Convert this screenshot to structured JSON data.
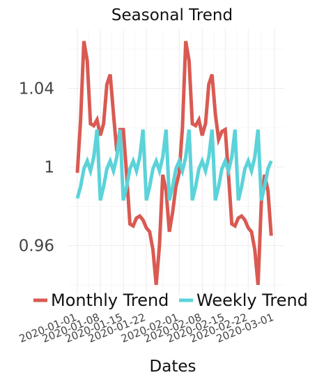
{
  "chart_data": {
    "type": "line",
    "title": "Seasonal Trend",
    "xlabel": "Dates",
    "ylabel": "",
    "x_start": "2020-01-01",
    "x_end": "2020-03-01",
    "xtick_labels": [
      "2020-01-01",
      "2020-01-08",
      "2020-01-15",
      "2020-01-22",
      "2020-02-01",
      "2020-02-08",
      "2020-02-15",
      "2020-02-22",
      "2020-03-01"
    ],
    "ytick_labels": [
      "0.96",
      "1",
      "1.04"
    ],
    "ytick_values": [
      0.96,
      1.0,
      1.04
    ],
    "ylim": [
      0.935,
      1.07
    ],
    "grid": true,
    "legend_position": "bottom",
    "x": [
      "2020-01-01",
      "2020-01-02",
      "2020-01-03",
      "2020-01-04",
      "2020-01-05",
      "2020-01-06",
      "2020-01-07",
      "2020-01-08",
      "2020-01-09",
      "2020-01-10",
      "2020-01-11",
      "2020-01-12",
      "2020-01-13",
      "2020-01-14",
      "2020-01-15",
      "2020-01-16",
      "2020-01-17",
      "2020-01-18",
      "2020-01-19",
      "2020-01-20",
      "2020-01-21",
      "2020-01-22",
      "2020-01-23",
      "2020-01-24",
      "2020-01-25",
      "2020-01-26",
      "2020-01-27",
      "2020-01-28",
      "2020-01-29",
      "2020-01-30",
      "2020-01-31",
      "2020-02-01",
      "2020-02-02",
      "2020-02-03",
      "2020-02-04",
      "2020-02-05",
      "2020-02-06",
      "2020-02-07",
      "2020-02-08",
      "2020-02-09",
      "2020-02-10",
      "2020-02-11",
      "2020-02-12",
      "2020-02-13",
      "2020-02-14",
      "2020-02-15",
      "2020-02-16",
      "2020-02-17",
      "2020-02-18",
      "2020-02-19",
      "2020-02-20",
      "2020-02-21",
      "2020-02-22",
      "2020-02-23",
      "2020-02-24",
      "2020-02-25",
      "2020-02-26",
      "2020-02-27",
      "2020-02-28",
      "2020-02-29"
    ],
    "series": [
      {
        "name": "Monthly Trend",
        "color": "#d95a52",
        "values": [
          0.997,
          1.024,
          1.064,
          1.054,
          1.022,
          1.021,
          1.024,
          1.016,
          1.022,
          1.042,
          1.047,
          1.027,
          1.008,
          1.019,
          1.019,
          0.996,
          0.971,
          0.97,
          0.974,
          0.975,
          0.973,
          0.969,
          0.967,
          0.958,
          0.94,
          0.96,
          0.996,
          0.988,
          0.967,
          0.977,
          0.99,
          0.997,
          1.02,
          1.064,
          1.054,
          1.022,
          1.021,
          1.024,
          1.016,
          1.022,
          1.042,
          1.047,
          1.027,
          1.014,
          1.018,
          1.019,
          0.996,
          0.971,
          0.97,
          0.974,
          0.975,
          0.973,
          0.969,
          0.967,
          0.958,
          0.94,
          0.982,
          0.996,
          0.988,
          0.965
        ]
      },
      {
        "name": "Weekly Trend",
        "color": "#5bd3d9",
        "values": [
          0.984,
          0.99,
          0.999,
          1.003,
          0.998,
          1.005,
          1.019,
          0.983,
          0.99,
          0.999,
          1.003,
          0.998,
          1.005,
          1.019,
          0.983,
          0.99,
          0.999,
          1.003,
          0.998,
          1.005,
          1.019,
          0.983,
          0.99,
          0.999,
          1.003,
          0.998,
          1.005,
          1.019,
          0.983,
          0.99,
          0.999,
          1.003,
          0.998,
          1.005,
          1.019,
          0.983,
          0.99,
          0.999,
          1.003,
          0.998,
          1.005,
          1.019,
          0.983,
          0.99,
          0.999,
          1.003,
          0.998,
          1.005,
          1.019,
          0.983,
          0.99,
          0.999,
          1.003,
          0.998,
          1.005,
          1.019,
          0.983,
          0.99,
          0.999,
          1.003
        ]
      }
    ]
  }
}
